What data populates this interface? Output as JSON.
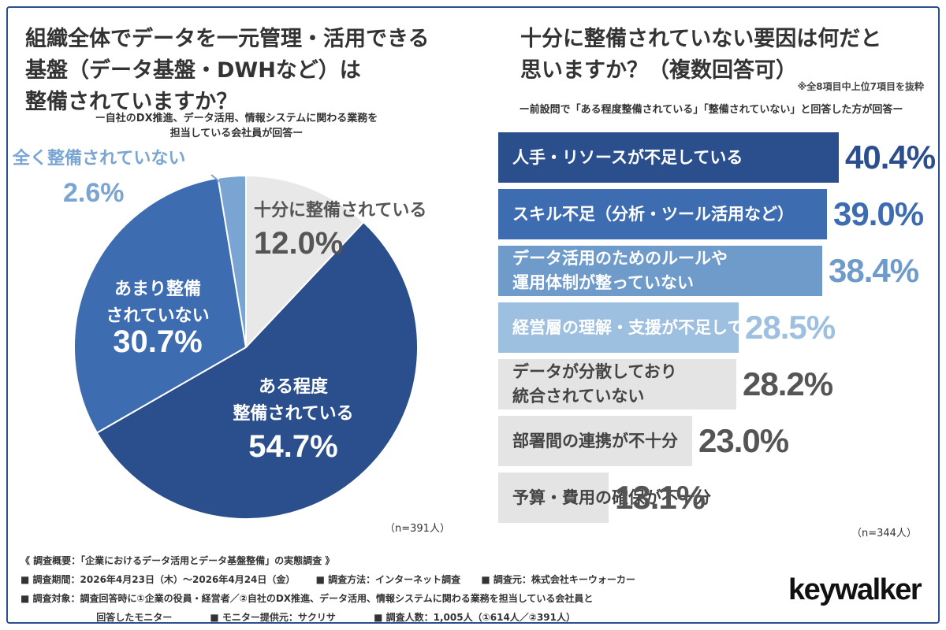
{
  "left": {
    "title": [
      "組織全体でデータを一元管理・活用できる",
      "基盤（データ基盤・DWHなど）は",
      "整備されていますか？"
    ],
    "note": [
      "ー自社のDX推進、データ活用、情報システムに関わる業務を",
      "担当している会社員が回答ー"
    ],
    "n_label": "（n=391人）"
  },
  "right": {
    "title": [
      "十分に整備されていない要因は何だと",
      "思いますか？（複数回答可）"
    ],
    "note": "※全8項目中上位7項目を抜粋",
    "subtitle": "ー前設問で「ある程度整備されている」「整備されていない」と回答した方が回答ー",
    "n_label": "（n=344人）"
  },
  "chart_data": [
    {
      "type": "pie",
      "categories": [
        "十分に整備されている",
        "ある程度整備されている",
        "あまり整備されていない",
        "全く整備されていない"
      ],
      "labels": [
        [
          "十分に整備されている"
        ],
        [
          "ある程度",
          "整備されている"
        ],
        [
          "あまり整備",
          "されていない"
        ],
        [
          "全く整備されていない"
        ]
      ],
      "values": [
        12.0,
        54.7,
        30.7,
        2.6
      ],
      "value_labels": [
        "12.0%",
        "54.7%",
        "30.7%",
        "2.6%"
      ],
      "colors": [
        "#e8e8e8",
        "#2b4f8c",
        "#3e6cb1",
        "#7aa5d2"
      ],
      "text_colors": [
        "#555555",
        "#ffffff",
        "#ffffff",
        "#7aa5d2"
      ],
      "start": "top",
      "direction": "clockwise"
    },
    {
      "type": "bar",
      "orientation": "horizontal",
      "categories": [
        "人手・リソースが不足している",
        "スキル不足（分析・ツール活用など）",
        "データ活用のためのルールや\n運用体制が整っていない",
        "経営層の理解・支援が不足している",
        "データが分散しており\n統合されていない",
        "部署間の連携が不十分",
        "予算・費用の確保が不十分"
      ],
      "values": [
        40.4,
        39.0,
        38.4,
        28.5,
        28.2,
        23.0,
        13.1
      ],
      "value_labels": [
        "40.4%",
        "39.0%",
        "38.4%",
        "28.5%",
        "28.2%",
        "23.0%",
        "13.1%"
      ],
      "xlim": [
        0,
        40.4
      ],
      "colors": [
        "#2b4f8c",
        "#3e6cb1",
        "#6f9bcb",
        "#9dbfe0",
        "#e4e4e4",
        "#e4e4e4",
        "#e4e4e4"
      ],
      "label_colors": [
        "#ffffff",
        "#ffffff",
        "#ffffff",
        "#ffffff",
        "#444444",
        "#444444",
        "#444444"
      ],
      "value_colors": [
        "#2b4f8c",
        "#3e6cb1",
        "#6f9bcb",
        "#9dbfe0",
        "#555555",
        "#555555",
        "#555555"
      ]
    }
  ],
  "footer": {
    "overview": "《 調査概要：「企業におけるデータ活用とデータ基盤整備」の実態調査 》",
    "period": "■ 調査期間：2026年4月23日（木）〜2026年4月24日（金）",
    "method": "■ 調査方法：インターネット調査",
    "source": "■ 調査元：株式会社キーウォーカー",
    "target": "■ 調査対象：調査回答時に①企業の役員・経営者／②自社のDX推進、データ活用、情報システムに関わる業務を担当している会社員と",
    "target2": "回答したモニター",
    "provider": "■ モニター提供元：サクリサ",
    "count": "■ 調査人数：1,005人（①614人／②391人）"
  },
  "brand": {
    "logo": "keywalker"
  }
}
